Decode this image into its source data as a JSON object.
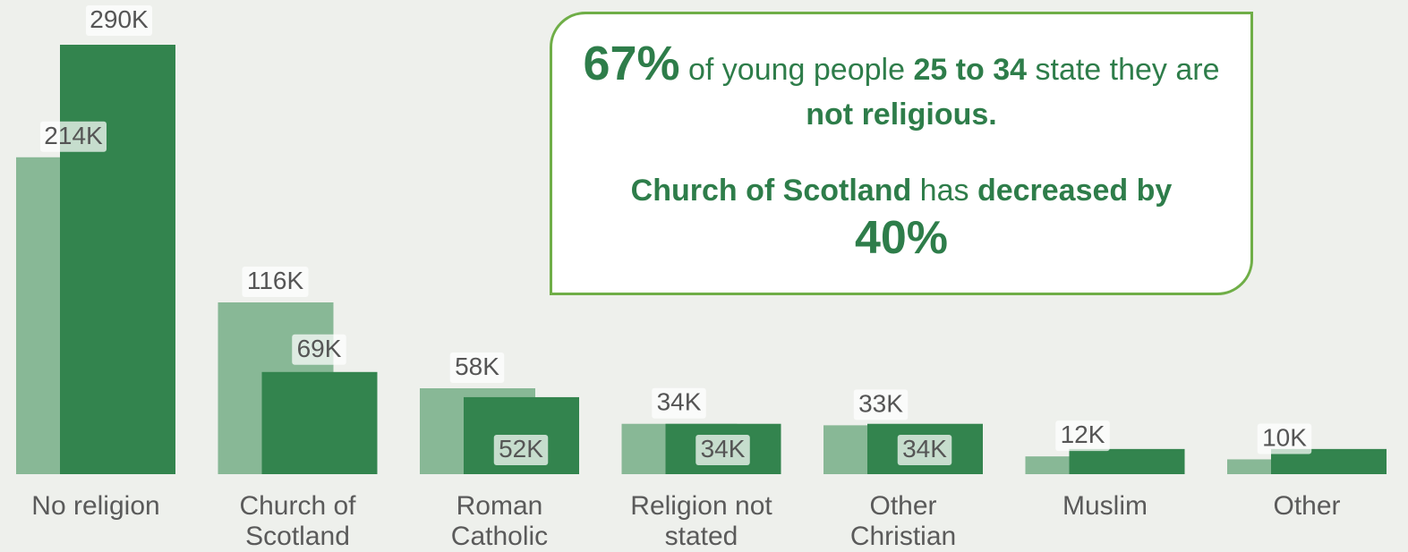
{
  "chart_data": {
    "type": "bar",
    "categories": [
      [
        "No religion"
      ],
      [
        "Church of",
        "Scotland"
      ],
      [
        "Roman",
        "Catholic"
      ],
      [
        "Religion not",
        "stated"
      ],
      [
        "Other",
        "Christian"
      ],
      [
        "Muslim"
      ],
      [
        "Other"
      ]
    ],
    "series": [
      {
        "values": [
          214,
          116,
          58,
          34,
          33,
          12,
          10
        ],
        "labels": [
          "214K",
          "116K",
          "58K",
          "34K",
          "33K",
          "12K",
          "10K"
        ],
        "color": "#88b896"
      },
      {
        "values": [
          290,
          69,
          52,
          34,
          34,
          17,
          17
        ],
        "labels": [
          "290K",
          "69K",
          "52K",
          "34K",
          "34K",
          "",
          ""
        ],
        "color": "#33844e"
      }
    ],
    "ylim": [
      0,
      290
    ],
    "grid": false,
    "legend": "none"
  },
  "callout": {
    "pct_young": "67%",
    "t1": " of young people ",
    "age_range": "25 to 34",
    "t2": " state they are ",
    "not_religious": "not religious.",
    "church": "Church of Scotland",
    "t3": " has ",
    "decreased": "decreased by",
    "pct_church": "40%"
  },
  "colors": {
    "background": "#eef0ec",
    "accent_text": "#2e7d4a",
    "callout_border": "#6fae47"
  }
}
